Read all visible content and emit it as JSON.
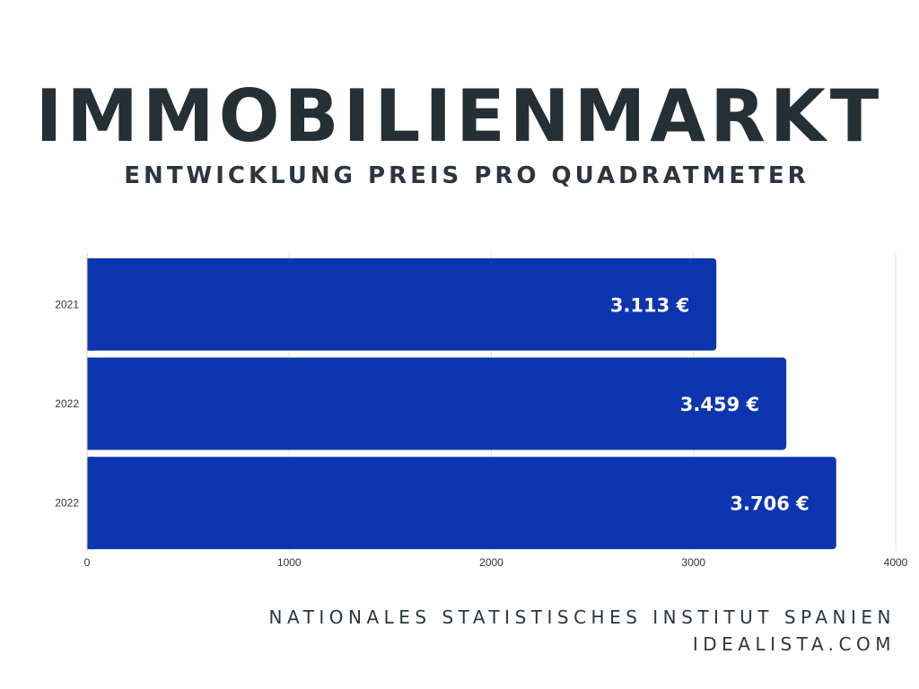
{
  "header": {
    "title": "IMMOBILIENMARKT",
    "subtitle": "ENTWICKLUNG PREIS PRO QUADRATMETER"
  },
  "chart_data": {
    "type": "bar",
    "orientation": "horizontal",
    "categories": [
      "2021",
      "2022",
      "2022"
    ],
    "values": [
      3113,
      3459,
      3706
    ],
    "data_labels": [
      "3.113 €",
      "3.459 €",
      "3.706 €"
    ],
    "xlim": [
      0,
      4000
    ],
    "xticks": [
      "0",
      "1000",
      "2000",
      "3000",
      "4000"
    ],
    "grid": true,
    "bar_color": "#0d35b0"
  },
  "footer": {
    "source_line1": "NATIONALES STATISTISCHES INSTITUT SPANIEN",
    "source_line2": "IDEALISTA.COM"
  },
  "colors": {
    "text": "#252f36",
    "bar": "#0d35b0",
    "grid": "#e3e3e3"
  }
}
